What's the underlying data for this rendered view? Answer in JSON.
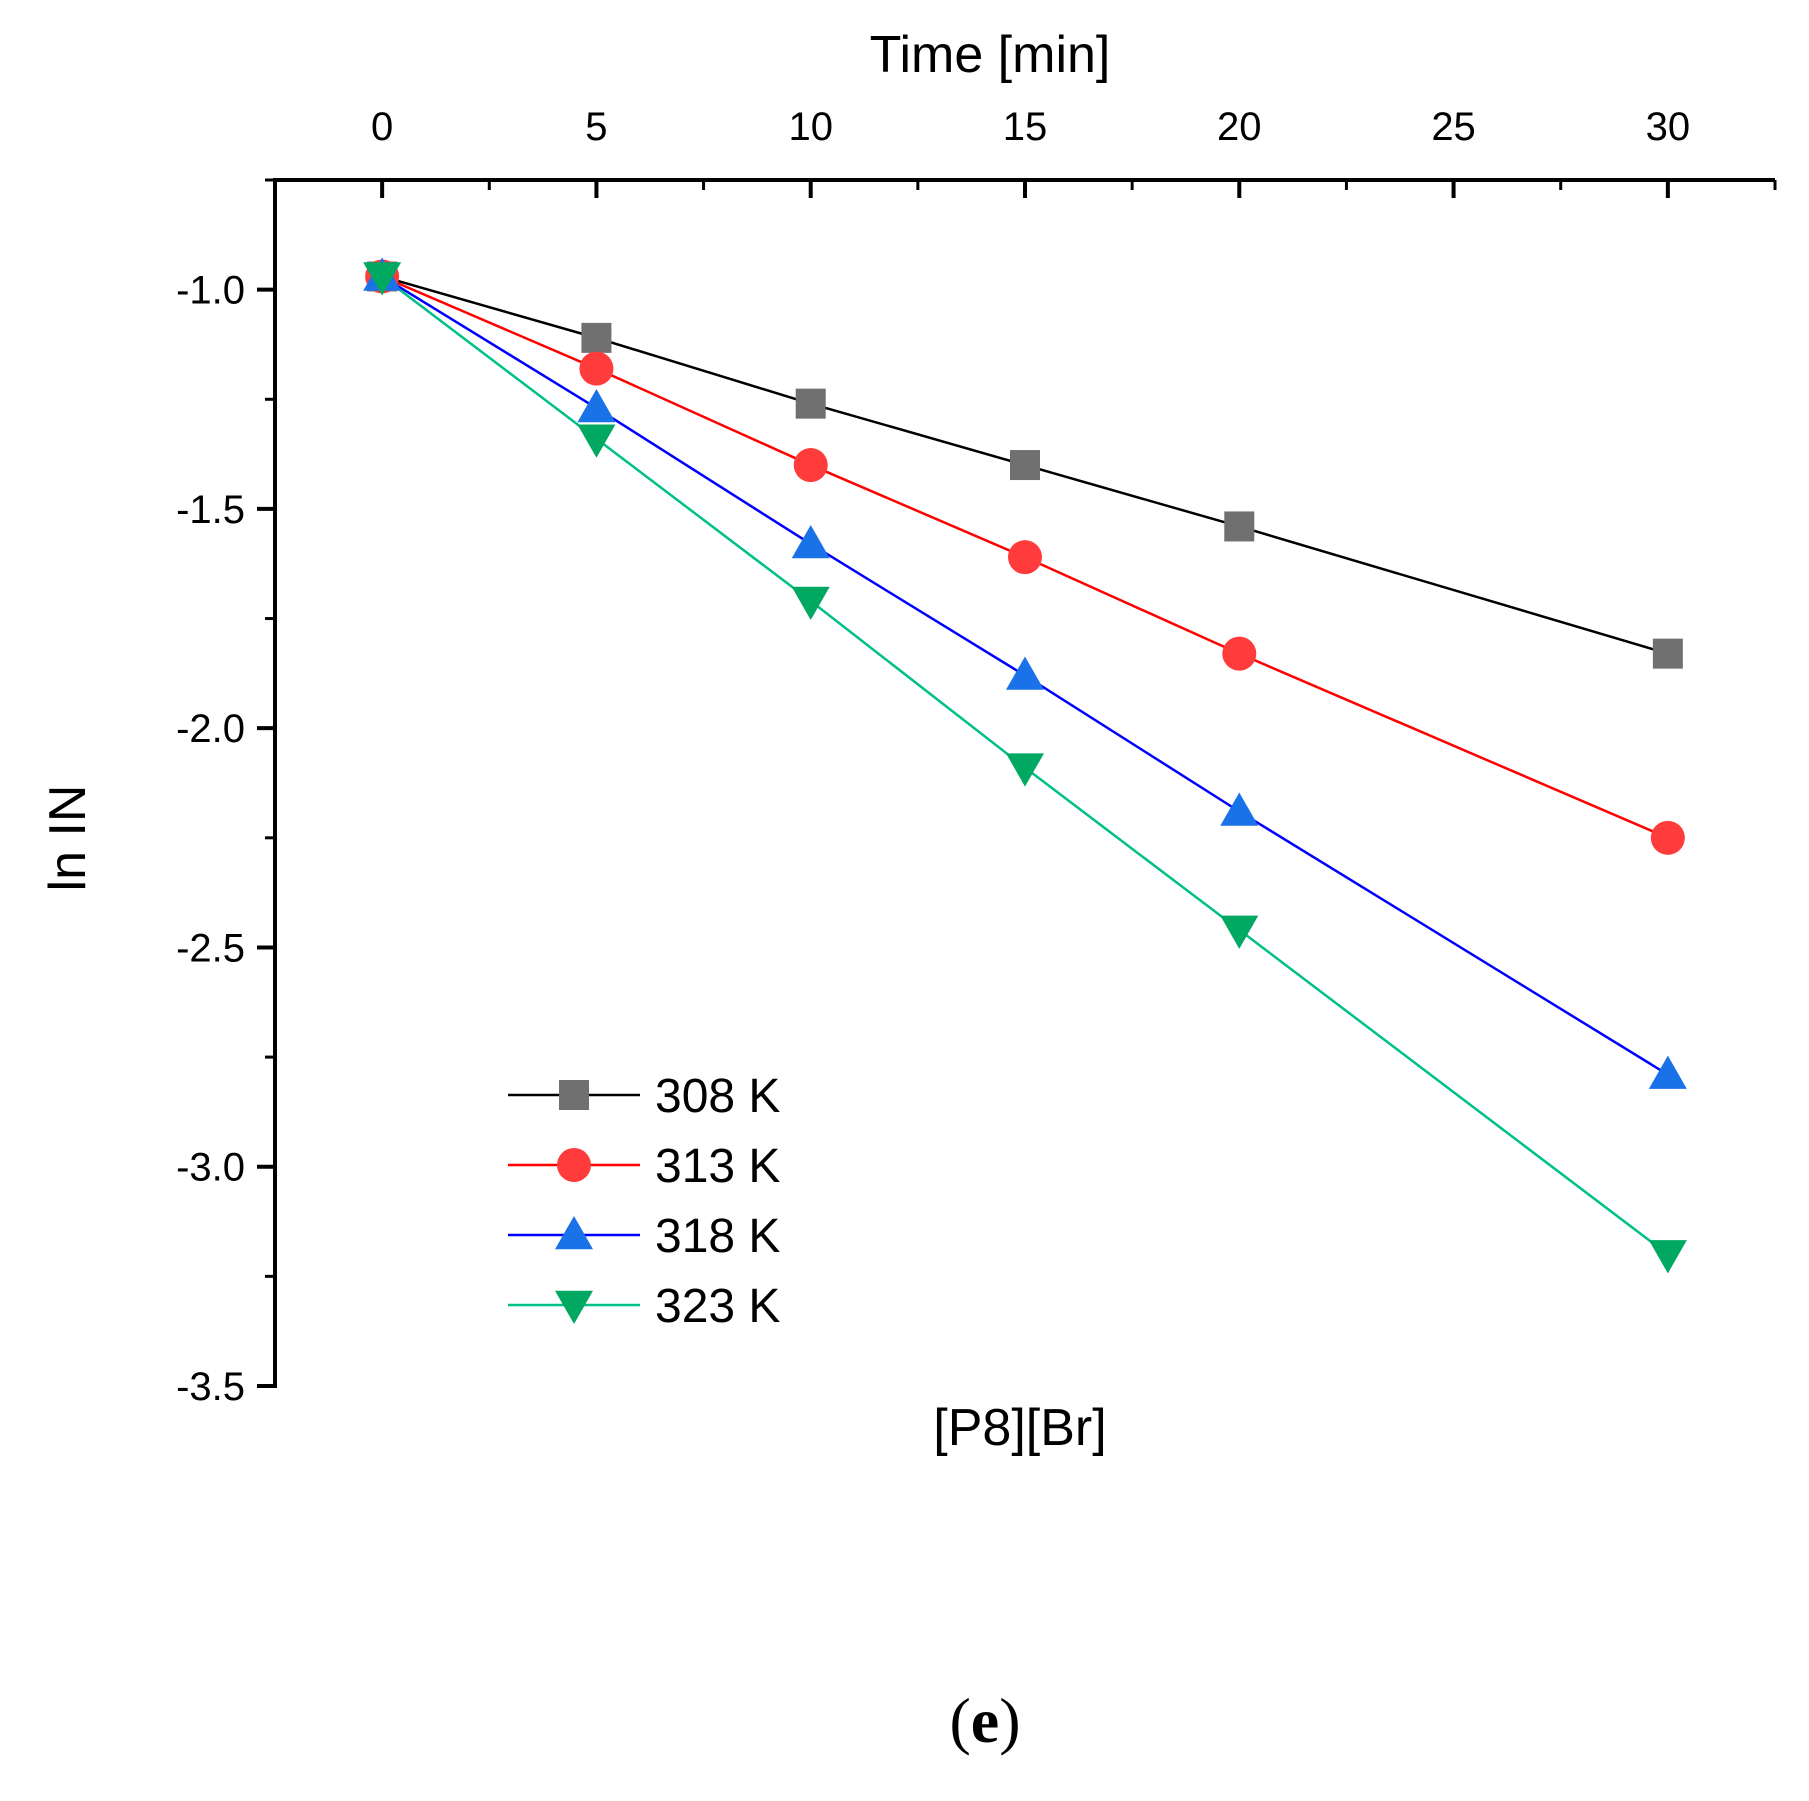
{
  "chart_data": {
    "type": "line",
    "xlabel": "Time [min]",
    "ylabel": "ln IN",
    "subtitle": "[P8][Br]",
    "panel_label_open": "(",
    "panel_label_letter": "e",
    "panel_label_close": ")",
    "x_axis_position": "top",
    "xlim": [
      -2.5,
      32.5
    ],
    "ylim": [
      -3.5,
      -0.75
    ],
    "x_ticks": [
      0,
      5,
      10,
      15,
      20,
      25,
      30
    ],
    "x_tick_labels": [
      "0",
      "5",
      "10",
      "15",
      "20",
      "25",
      "30"
    ],
    "y_ticks": [
      -1.0,
      -1.5,
      -2.0,
      -2.5,
      -3.0,
      -3.5
    ],
    "y_tick_labels": [
      "-1.0",
      "-1.5",
      "-2.0",
      "-2.5",
      "-3.0",
      "-3.5"
    ],
    "grid": false,
    "legend_position": "bottom-left",
    "x": [
      0,
      5,
      10,
      15,
      20,
      30
    ],
    "series": [
      {
        "name": "308 K",
        "marker": "square",
        "line_color": "#000000",
        "marker_color": "#707070",
        "values": [
          -0.97,
          -1.11,
          -1.26,
          -1.4,
          -1.54,
          -1.83
        ]
      },
      {
        "name": "313 K",
        "marker": "circle",
        "line_color": "#ff0000",
        "marker_color": "#ff3b3b",
        "values": [
          -0.97,
          -1.18,
          -1.4,
          -1.61,
          -1.83,
          -2.25
        ]
      },
      {
        "name": "318 K",
        "marker": "triangle-up",
        "line_color": "#0000ff",
        "marker_color": "#1a72e8",
        "values": [
          -0.97,
          -1.27,
          -1.58,
          -1.88,
          -2.19,
          -2.79
        ]
      },
      {
        "name": "323 K",
        "marker": "triangle-down",
        "line_color": "#00c08a",
        "marker_color": "#00a862",
        "values": [
          -0.97,
          -1.34,
          -1.71,
          -2.09,
          -2.46,
          -3.2
        ]
      }
    ]
  }
}
